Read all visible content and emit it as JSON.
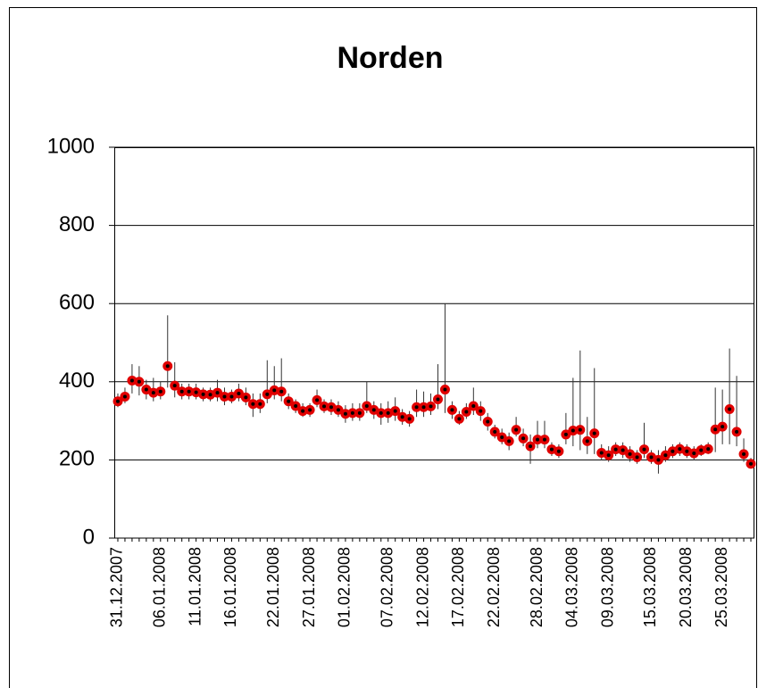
{
  "chart_data": {
    "type": "scatter",
    "title": "Norden",
    "categories": [
      "31.12.2007",
      null,
      null,
      null,
      null,
      null,
      "06.01.2008",
      null,
      null,
      null,
      null,
      "11.01.2008",
      null,
      null,
      null,
      null,
      "16.01.2008",
      null,
      null,
      null,
      null,
      null,
      "22.01.2008",
      null,
      null,
      null,
      null,
      "27.01.2008",
      null,
      null,
      null,
      null,
      "01.02.2008",
      null,
      null,
      null,
      null,
      null,
      "07.02.2008",
      null,
      null,
      null,
      null,
      "12.02.2008",
      null,
      null,
      null,
      null,
      "17.02.2008",
      null,
      null,
      null,
      null,
      "22.02.2008",
      null,
      null,
      null,
      null,
      null,
      "28.02.2008",
      null,
      null,
      null,
      null,
      "04.03.2008",
      null,
      null,
      null,
      null,
      "09.03.2008",
      null,
      null,
      null,
      null,
      null,
      "15.03.2008",
      null,
      null,
      null,
      null,
      "20.03.2008",
      null,
      null,
      null,
      null,
      "25.03.2008",
      null,
      null,
      null,
      null
    ],
    "values": [
      350,
      362,
      403,
      400,
      380,
      372,
      375,
      440,
      390,
      375,
      375,
      373,
      368,
      367,
      372,
      362,
      362,
      370,
      360,
      343,
      343,
      368,
      378,
      375,
      350,
      338,
      325,
      328,
      353,
      337,
      335,
      328,
      318,
      320,
      320,
      338,
      328,
      320,
      320,
      325,
      310,
      305,
      335,
      335,
      337,
      355,
      380,
      328,
      305,
      323,
      338,
      325,
      298,
      272,
      258,
      248,
      277,
      255,
      235,
      252,
      252,
      227,
      222,
      265,
      275,
      277,
      248,
      268,
      218,
      212,
      227,
      225,
      215,
      207,
      227,
      207,
      200,
      212,
      222,
      228,
      222,
      217,
      225,
      228,
      278,
      285,
      330,
      272,
      215,
      190
    ],
    "high": [
      370,
      385,
      445,
      440,
      405,
      410,
      400,
      570,
      450,
      395,
      395,
      395,
      385,
      385,
      405,
      385,
      380,
      395,
      385,
      370,
      370,
      455,
      440,
      460,
      370,
      355,
      345,
      345,
      380,
      355,
      355,
      350,
      340,
      345,
      345,
      400,
      350,
      345,
      350,
      360,
      330,
      325,
      380,
      375,
      370,
      445,
      600,
      350,
      325,
      345,
      385,
      350,
      320,
      290,
      280,
      270,
      310,
      280,
      265,
      300,
      300,
      245,
      240,
      320,
      410,
      480,
      310,
      435,
      240,
      235,
      245,
      245,
      235,
      225,
      295,
      225,
      225,
      235,
      240,
      245,
      240,
      235,
      240,
      245,
      385,
      380,
      485,
      415,
      255,
      205
    ],
    "low": [
      335,
      345,
      370,
      365,
      355,
      350,
      355,
      385,
      360,
      355,
      355,
      355,
      350,
      350,
      350,
      340,
      345,
      350,
      340,
      310,
      320,
      345,
      355,
      350,
      330,
      320,
      310,
      310,
      335,
      320,
      315,
      310,
      295,
      300,
      300,
      320,
      305,
      290,
      295,
      300,
      290,
      285,
      310,
      310,
      315,
      330,
      320,
      305,
      290,
      305,
      315,
      300,
      275,
      255,
      240,
      225,
      260,
      235,
      190,
      230,
      230,
      210,
      205,
      240,
      235,
      225,
      215,
      215,
      200,
      195,
      210,
      205,
      195,
      190,
      205,
      190,
      165,
      195,
      205,
      210,
      205,
      200,
      210,
      215,
      220,
      240,
      240,
      235,
      195,
      180
    ],
    "color": "#e00000",
    "ylim": [
      0,
      1000
    ],
    "yticks": [
      0,
      200,
      400,
      600,
      800,
      1000
    ],
    "grid": true
  }
}
